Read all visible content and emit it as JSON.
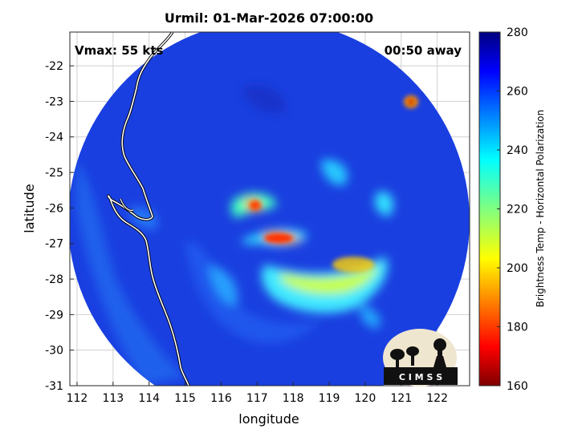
{
  "title": "Urmil: 01-Mar-2026 07:00:00",
  "vmax_label": "Vmax: 55 kts",
  "eta_label": "00:50 away",
  "map": {
    "xlabel": "longitude",
    "ylabel": "latitude",
    "xlim": [
      111.8,
      122.9
    ],
    "ylim": [
      -31,
      -21.05
    ],
    "xticks": [
      "112",
      "113",
      "114",
      "115",
      "116",
      "117",
      "118",
      "119",
      "120",
      "121",
      "122"
    ],
    "yticks": [
      "-22",
      "-23",
      "-24",
      "-25",
      "-26",
      "-27",
      "-28",
      "-29",
      "-30",
      "-31"
    ],
    "grid": true,
    "storm_center": {
      "lon": 117.1,
      "lat": -26.8
    },
    "scan_center": {
      "lon": 117.2,
      "lat": -26.2
    }
  },
  "colorbar": {
    "label": "Brightness Temp - Horizontal Polarization",
    "ticks": [
      "280",
      "260",
      "240",
      "220",
      "200",
      "180",
      "160"
    ],
    "range": [
      160,
      280
    ],
    "colormap": "jet"
  },
  "logo": {
    "text": "C I M S S"
  },
  "colors": {
    "background_scene": "#1a3fe0",
    "coastline": "#ffffff",
    "coastline_outline": "#000000"
  }
}
